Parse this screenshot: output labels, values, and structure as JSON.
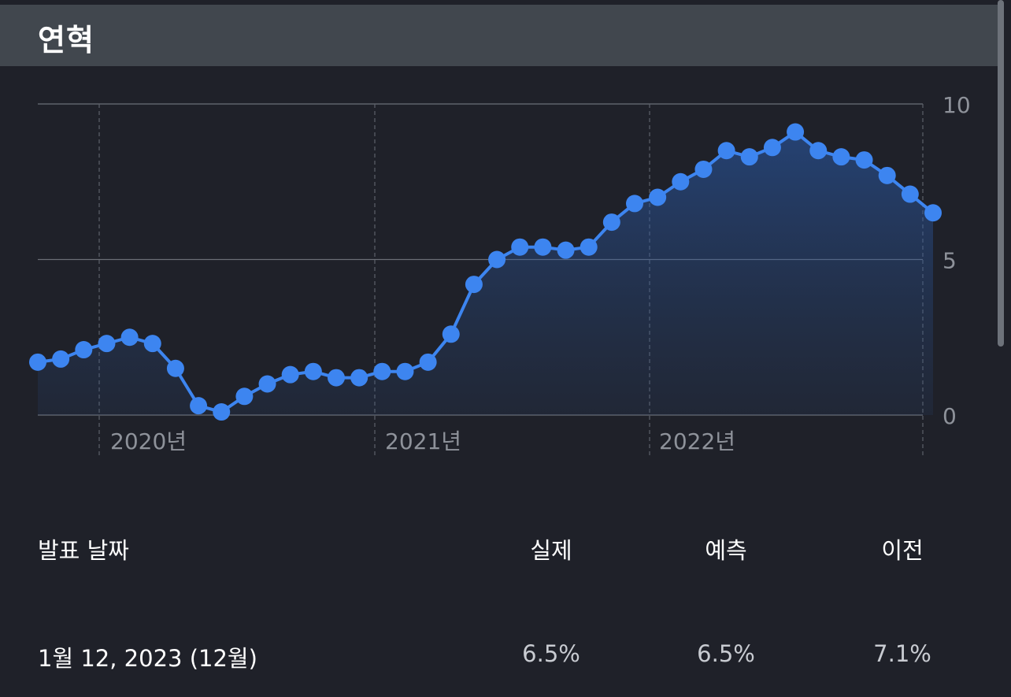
{
  "header": {
    "title": "연혁"
  },
  "colors": {
    "accent": "#3d85f0",
    "background": "#1f2129",
    "header_bg": "#41474e",
    "grid": "#6b6f77"
  },
  "chart_data": {
    "type": "line",
    "title": "",
    "xlabel": "",
    "ylabel": "",
    "ylim": [
      0,
      10
    ],
    "yticks": [
      0,
      5,
      10
    ],
    "y_axis_position": "right",
    "x_tick_labels": [
      "2020년",
      "2021년",
      "2022년"
    ],
    "grid": true,
    "area_fill": true,
    "series": [
      {
        "values": [
          1.7,
          1.8,
          2.1,
          2.3,
          2.5,
          2.3,
          1.5,
          0.3,
          0.1,
          0.6,
          1.0,
          1.3,
          1.4,
          1.2,
          1.2,
          1.4,
          1.4,
          1.7,
          2.6,
          4.2,
          5.0,
          5.4,
          5.4,
          5.3,
          5.4,
          6.2,
          6.8,
          7.0,
          7.5,
          7.9,
          8.5,
          8.3,
          8.6,
          9.1,
          8.5,
          8.3,
          8.2,
          7.7,
          7.1,
          6.5
        ]
      }
    ]
  },
  "table": {
    "headers": {
      "date": "발표 날짜",
      "actual": "실제",
      "forecast": "예측",
      "previous": "이전"
    },
    "rows": [
      {
        "date": "1월 12, 2023 (12월)",
        "actual": "6.5%",
        "forecast": "6.5%",
        "previous": "7.1%"
      }
    ]
  }
}
